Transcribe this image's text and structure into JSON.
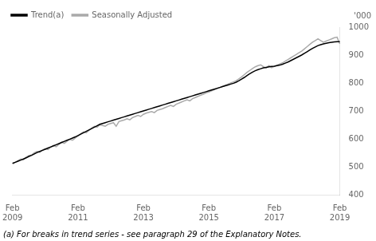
{
  "chart_data": {
    "type": "line",
    "ylabel": "'000",
    "footnote": "(a) For breaks in trend series - see paragraph 29 of the Explanatory Notes.",
    "legend": "upper left",
    "grid": false,
    "ylim": [
      400,
      1000
    ],
    "yticks": [
      400,
      500,
      600,
      700,
      800,
      900,
      1000
    ],
    "categories": [
      "Feb\n2009",
      null,
      null,
      null,
      null,
      null,
      null,
      null,
      null,
      null,
      null,
      null,
      null,
      null,
      null,
      null,
      null,
      null,
      null,
      null,
      null,
      null,
      null,
      null,
      "Feb\n2011",
      null,
      null,
      null,
      null,
      null,
      null,
      null,
      null,
      null,
      null,
      null,
      null,
      null,
      null,
      null,
      null,
      null,
      null,
      null,
      null,
      null,
      null,
      null,
      "Feb\n2013",
      null,
      null,
      null,
      null,
      null,
      null,
      null,
      null,
      null,
      null,
      null,
      null,
      null,
      null,
      null,
      null,
      null,
      null,
      null,
      null,
      null,
      null,
      null,
      "Feb\n2015",
      null,
      null,
      null,
      null,
      null,
      null,
      null,
      null,
      null,
      null,
      null,
      null,
      null,
      null,
      null,
      null,
      null,
      null,
      null,
      null,
      null,
      null,
      null,
      "Feb\n2017",
      null,
      null,
      null,
      null,
      null,
      null,
      null,
      null,
      null,
      null,
      null,
      null,
      null,
      null,
      null,
      null,
      null,
      null,
      null,
      null,
      null,
      null,
      null,
      "Feb\n2019"
    ],
    "series": [
      {
        "name": "Trend(a)",
        "color": "#000000",
        "values": [
          512,
          516,
          520,
          524,
          528,
          532,
          537,
          541,
          546,
          551,
          555,
          559,
          563,
          567,
          571,
          575,
          579,
          583,
          587,
          591,
          595,
          599,
          603,
          607,
          612,
          617,
          622,
          627,
          632,
          637,
          642,
          647,
          652,
          655,
          658,
          661,
          664,
          667,
          670,
          673,
          676,
          679,
          682,
          685,
          688,
          691,
          694,
          697,
          700,
          703,
          706,
          709,
          712,
          715,
          718,
          721,
          724,
          727,
          730,
          733,
          736,
          739,
          742,
          745,
          748,
          751,
          754,
          757,
          760,
          763,
          766,
          769,
          772,
          775,
          778,
          781,
          784,
          787,
          790,
          793,
          796,
          799,
          803,
          808,
          814,
          820,
          827,
          833,
          839,
          844,
          848,
          851,
          854,
          856,
          858,
          859,
          860,
          862,
          864,
          867,
          871,
          875,
          880,
          885,
          890,
          895,
          900,
          906,
          912,
          918,
          924,
          929,
          934,
          937,
          940,
          942,
          944,
          946,
          947,
          948,
          948
        ]
      },
      {
        "name": "Seasonally Adjusted",
        "color": "#aaaaaa",
        "values": [
          512,
          516,
          522,
          528,
          525,
          535,
          540,
          542,
          550,
          555,
          552,
          560,
          565,
          562,
          570,
          576,
          572,
          580,
          588,
          584,
          592,
          598,
          595,
          603,
          610,
          618,
          625,
          622,
          630,
          638,
          645,
          642,
          650,
          648,
          645,
          652,
          655,
          658,
          645,
          662,
          665,
          668,
          672,
          668,
          676,
          680,
          684,
          680,
          688,
          692,
          695,
          698,
          694,
          702,
          705,
          708,
          712,
          716,
          720,
          716,
          724,
          728,
          732,
          736,
          740,
          736,
          744,
          748,
          752,
          756,
          760,
          765,
          768,
          772,
          776,
          780,
          784,
          788,
          792,
          796,
          800,
          804,
          808,
          815,
          822,
          830,
          838,
          845,
          852,
          858,
          862,
          865,
          858,
          854,
          862,
          855,
          860,
          864,
          868,
          872,
          878,
          884,
          890,
          896,
          902,
          908,
          914,
          922,
          930,
          938,
          946,
          952,
          958,
          952,
          946,
          950,
          954,
          958,
          962,
          964,
          940
        ]
      }
    ]
  }
}
